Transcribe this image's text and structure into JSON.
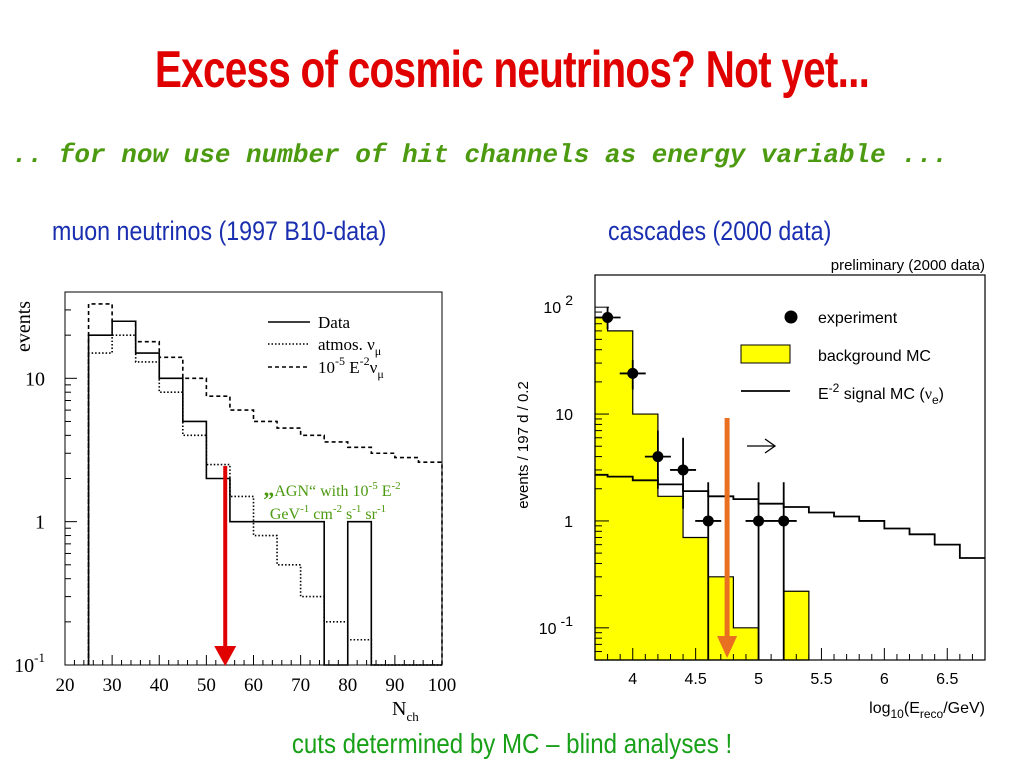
{
  "slide": {
    "title": "Excess of cosmic neutrinos? Not yet...",
    "subtitle": ".. for now use number of hit channels as energy variable ...",
    "left_heading": "muon  neutrinos (1997 B10-data)",
    "right_heading": "cascades (2000 data)",
    "footer": "cuts determined by MC – blind analyses !"
  },
  "colors": {
    "title": "#e00000",
    "subtitle": "#4c9a10",
    "heading": "#1a2fb0",
    "footer": "#18a018",
    "cut_arrow_left": "#e00000",
    "cut_arrow_right": "#e87020",
    "background_mc": "#ffff00"
  },
  "chart_data": [
    {
      "type": "histogram",
      "xlabel": "N_ch",
      "ylabel": "events",
      "xlim": [
        20,
        100
      ],
      "ylim": [
        0.1,
        40
      ],
      "yscale": "log",
      "x_ticks": [
        "20",
        "30",
        "40",
        "50",
        "60",
        "70",
        "80",
        "90",
        "100"
      ],
      "y_ticks": [
        {
          "value": 10,
          "label": "10"
        },
        {
          "value": 1,
          "label": "1"
        },
        {
          "value": 0.1,
          "base": "10",
          "exp": "-1"
        }
      ],
      "bin_edges": [
        25,
        30,
        35,
        40,
        45,
        50,
        55,
        60,
        65,
        70,
        75,
        80,
        85,
        90,
        95,
        100
      ],
      "series": [
        {
          "name": "Data",
          "style": "solid",
          "values": [
            20,
            25,
            15,
            10,
            5,
            2,
            1,
            1,
            1,
            1,
            0,
            1,
            0.1,
            0.1,
            0.1
          ]
        },
        {
          "name": "atmos. ν_μ",
          "style": "dotted",
          "values": [
            15,
            20,
            13,
            8,
            4,
            2.5,
            1.5,
            0.8,
            0.5,
            0.3,
            0.2,
            0.15,
            0.1,
            0.1,
            0.1
          ]
        },
        {
          "name": "10^-5 E^-2 ν_μ",
          "style": "dashed",
          "values": [
            33,
            25,
            18,
            14,
            10,
            7.5,
            6,
            5,
            4.5,
            4,
            3.6,
            3.3,
            3,
            2.8,
            2.6
          ]
        }
      ],
      "legend": [
        {
          "label": "Data"
        },
        {
          "label": "atmos. ",
          "sym": "ν",
          "sub": "μ"
        },
        {
          "pre": "10",
          "exp1": "-5",
          "mid": " E",
          "exp2": "-2",
          "sym": "ν",
          "sub": "μ"
        }
      ],
      "cut_at": 54,
      "annotation": {
        "line1": "„AGN“ with 10-5 E-2",
        "line2": "GeV-1 cm-2 s-1 sr-1"
      }
    },
    {
      "type": "histogram",
      "xlabel": "log10(Ereco/GeV)",
      "ylabel": "events / 197 d / 0.2",
      "label": "preliminary (2000 data)",
      "xlim": [
        3.7,
        6.8
      ],
      "ylim": [
        0.05,
        200
      ],
      "yscale": "log",
      "x_ticks": [
        "4",
        "4.5",
        "5",
        "5.5",
        "6",
        "6.5"
      ],
      "y_ticks": [
        {
          "value": 100,
          "base": "10",
          "exp": "2"
        },
        {
          "value": 10,
          "label": "10"
        },
        {
          "value": 1,
          "label": "1"
        },
        {
          "value": 0.1,
          "base": "10",
          "exp": "-1"
        }
      ],
      "background_mc": {
        "bin_edges": [
          3.7,
          3.8,
          4.0,
          4.2,
          4.4,
          4.6,
          4.8,
          5.0,
          5.2,
          5.4
        ],
        "values": [
          80,
          60,
          10,
          1.7,
          0.7,
          0.3,
          0.1,
          0.02,
          0.22
        ]
      },
      "signal_mc": {
        "bin_edges": [
          3.7,
          3.8,
          4.0,
          4.2,
          4.4,
          4.6,
          4.8,
          5.0,
          5.2,
          5.4,
          5.6,
          5.8,
          6.0,
          6.2,
          6.4,
          6.6,
          6.8
        ],
        "values": [
          2.7,
          2.6,
          2.4,
          2.2,
          1.9,
          1.7,
          1.6,
          1.45,
          1.35,
          1.2,
          1.1,
          1.0,
          0.85,
          0.75,
          0.6,
          0.45
        ]
      },
      "experiment": [
        {
          "x": 3.8,
          "y": 80,
          "ylo": 62,
          "yhi": 100
        },
        {
          "x": 4.0,
          "y": 24,
          "ylo": 17,
          "yhi": 32
        },
        {
          "x": 4.2,
          "y": 4,
          "ylo": 2,
          "yhi": 7
        },
        {
          "x": 4.4,
          "y": 3,
          "ylo": 1.3,
          "yhi": 6
        },
        {
          "x": 4.6,
          "y": 1,
          "ylo": 0.05,
          "yhi": 2.3
        },
        {
          "x": 5.0,
          "y": 1,
          "ylo": 0.05,
          "yhi": 2.3
        },
        {
          "x": 5.2,
          "y": 1,
          "ylo": 0.05,
          "yhi": 2.3
        }
      ],
      "legend": [
        {
          "label": "experiment"
        },
        {
          "label": "background MC"
        },
        {
          "pre": "E",
          "exp": "-2",
          "post": " signal MC (",
          "sym": "ν",
          "sub": "e",
          "end": ")"
        }
      ],
      "cut_at": 4.75,
      "cut_arrow_dir": "→"
    }
  ]
}
